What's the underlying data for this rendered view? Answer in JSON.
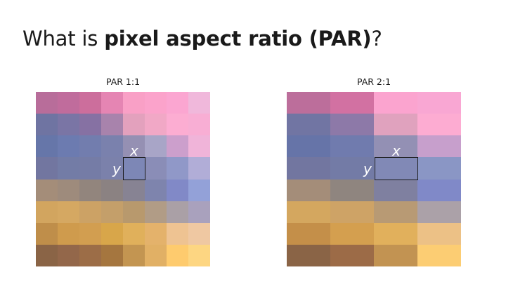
{
  "title": {
    "prefix": "What is ",
    "bold": "pixel aspect ratio (PAR)",
    "suffix": "?"
  },
  "panels": [
    {
      "label": "PAR 1:1",
      "axis_x": "x",
      "axis_y": "y",
      "cells": [
        [
          "#b86d9a",
          "#c06c9c",
          "#cc6e9c",
          "#e585b3",
          "#f9a0c6",
          "#fba3cb",
          "#fba6d1",
          "#f0b8db"
        ],
        [
          "#6f74a2",
          "#7a75a5",
          "#8671a3",
          "#a883ac",
          "#e3a1bd",
          "#f1a8c6",
          "#fcadd2",
          "#f8aed4"
        ],
        [
          "#6676a9",
          "#6c7bb0",
          "#727dae",
          "#7a81ad",
          "#9590b3",
          "#a8a5c7",
          "#cc9fcc",
          "#f0b4d9"
        ],
        [
          "#7276a0",
          "#737ca6",
          "#757ca6",
          "#7b81ab",
          "#7d87b6",
          "#8a8db7",
          "#9098c8",
          "#b1add7"
        ],
        [
          "#a48d79",
          "#9e8b7c",
          "#92857d",
          "#8b8282",
          "#878393",
          "#7e84ad",
          "#8189c7",
          "#93a1d8"
        ],
        [
          "#d2a55f",
          "#d5a862",
          "#cca265",
          "#c49f6a",
          "#b8996d",
          "#b19c86",
          "#aaa0a6",
          "#a9a1bd"
        ],
        [
          "#bf8e4a",
          "#cf9b4d",
          "#d29e50",
          "#d8a64a",
          "#e0b05b",
          "#e4b26b",
          "#eec392",
          "#efc8a2"
        ],
        [
          "#8a6446",
          "#93674a",
          "#9c6d47",
          "#a5763f",
          "#c39551",
          "#e1b065",
          "#fecb6e",
          "#fdd682"
        ]
      ]
    },
    {
      "label": "PAR 2:1",
      "axis_x": "x",
      "axis_y": "y",
      "cells": [
        [
          "#bc6e9b",
          "#d271a2",
          "#fba4cf",
          "#f9a7d3"
        ],
        [
          "#7175a3",
          "#8d79a8",
          "#e0a2be",
          "#fdacd2"
        ],
        [
          "#6674a8",
          "#707bae",
          "#9390b4",
          "#c79fcc"
        ],
        [
          "#7276a0",
          "#737ba6",
          "#8189b6",
          "#8a96c5"
        ],
        [
          "#a48d79",
          "#8f857f",
          "#7f80a0",
          "#8089c8"
        ],
        [
          "#d4a75f",
          "#cea366",
          "#b89a74",
          "#aba1a8"
        ],
        [
          "#c48f49",
          "#d49f4f",
          "#e1b05c",
          "#ecc186"
        ],
        [
          "#8a6446",
          "#9c6b47",
          "#c29352",
          "#fccd73"
        ]
      ]
    }
  ]
}
